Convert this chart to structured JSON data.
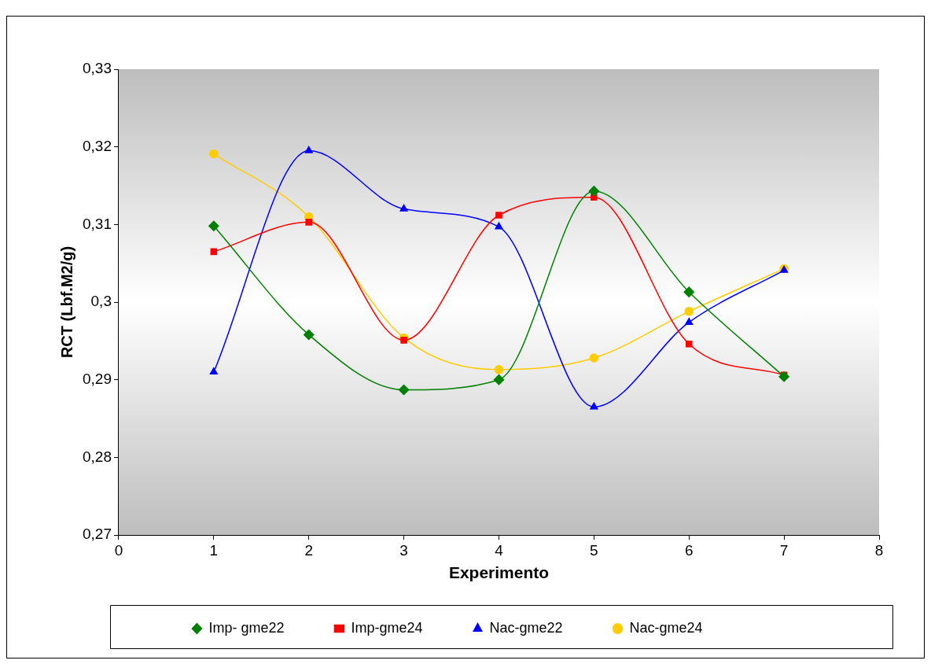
{
  "chart_data": {
    "type": "line",
    "xlabel": "Experimento",
    "ylabel": "RCT (Lbf.M2/g)",
    "x": [
      1,
      2,
      3,
      4,
      5,
      6,
      7
    ],
    "series": [
      {
        "name": "Imp- gme22",
        "color": "#008000",
        "marker": "diamond",
        "values": [
          0.3098,
          0.2958,
          0.2887,
          0.29,
          0.3143,
          0.3013,
          0.2904
        ]
      },
      {
        "name": "Imp-gme24",
        "color": "#ff0000",
        "marker": "square",
        "values": [
          0.3065,
          0.3103,
          0.2951,
          0.3112,
          0.3135,
          0.2946,
          0.2906
        ]
      },
      {
        "name": "Nac-gme22",
        "color": "#0000ff",
        "marker": "triangle",
        "values": [
          0.291,
          0.3195,
          0.312,
          0.3097,
          0.2865,
          0.2974,
          0.3041
        ]
      },
      {
        "name": "Nac-gme24",
        "color": "#ffcc00",
        "marker": "circle",
        "values": [
          0.3191,
          0.311,
          0.2954,
          0.2913,
          0.2928,
          0.2988,
          0.3043
        ]
      }
    ],
    "xlim": [
      0,
      8
    ],
    "xticks": [
      0,
      1,
      2,
      3,
      4,
      5,
      6,
      7,
      8
    ],
    "ylim": [
      0.27,
      0.33
    ],
    "yticks": [
      {
        "value": 0.27,
        "label": "0,27"
      },
      {
        "value": 0.28,
        "label": "0,28"
      },
      {
        "value": 0.29,
        "label": "0,29"
      },
      {
        "value": 0.3,
        "label": "0,3"
      },
      {
        "value": 0.31,
        "label": "0,31"
      },
      {
        "value": 0.32,
        "label": "0,32"
      },
      {
        "value": 0.33,
        "label": "0,33"
      }
    ],
    "grid": false,
    "legend": "bottom"
  }
}
